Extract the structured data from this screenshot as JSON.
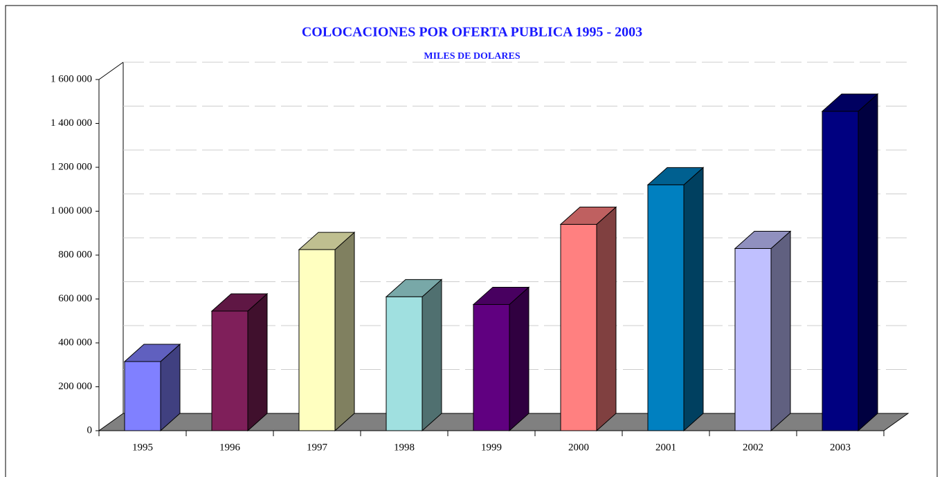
{
  "chart_data": {
    "type": "bar3d",
    "title": "COLOCACIONES POR OFERTA PUBLICA  1995 - 2003",
    "subtitle": "MILES DE DOLARES",
    "categories": [
      "1995",
      "1996",
      "1997",
      "1998",
      "1999",
      "2000",
      "2001",
      "2002",
      "2003"
    ],
    "values": [
      315000,
      545000,
      825000,
      610000,
      575000,
      940000,
      1120000,
      830000,
      1455000
    ],
    "colors": [
      "#8080ff",
      "#7f1f5a",
      "#ffffc0",
      "#a0e0e0",
      "#600080",
      "#ff8080",
      "#0080c0",
      "#c0c0ff",
      "#000080"
    ],
    "ylim": [
      0,
      1600000
    ],
    "yticks": [
      0,
      {
        "value": 200000,
        "label": "200 000"
      },
      {
        "value": 400000,
        "label": "400 000"
      },
      {
        "value": 600000,
        "label": "600 000"
      },
      {
        "value": 800000,
        "label": "800 000"
      },
      {
        "value": 1000000,
        "label": "1 000 000"
      },
      {
        "value": 1200000,
        "label": "1 200 000"
      },
      {
        "value": 1400000,
        "label": "1 400 000"
      },
      {
        "value": 1600000,
        "label": "1 600 000"
      }
    ],
    "grid": true
  }
}
